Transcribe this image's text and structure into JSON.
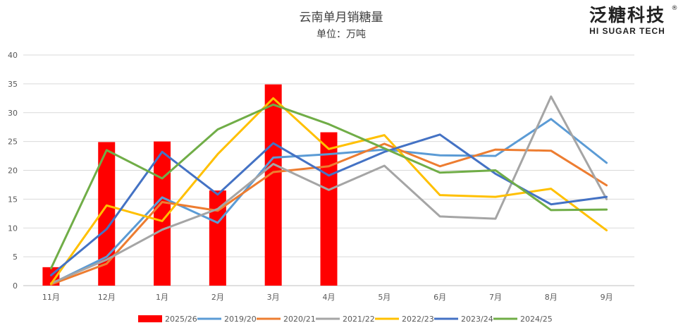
{
  "logo": {
    "name_cn": "泛糖科技",
    "name_en": "HI SUGAR TECH",
    "registered": "®"
  },
  "chart_data": {
    "type": "bar+line",
    "title": "云南单月销糖量",
    "subtitle": "单位：万吨",
    "xlabel": "",
    "ylabel": "",
    "categories": [
      "11月",
      "12月",
      "1月",
      "2月",
      "3月",
      "4月",
      "5月",
      "6月",
      "7月",
      "8月",
      "9月"
    ],
    "ylim": [
      0,
      40
    ],
    "yticks": [
      0,
      5,
      10,
      15,
      20,
      25,
      30,
      35,
      40
    ],
    "grid": true,
    "legend_position": "bottom",
    "bar_series": {
      "name": "2025/26",
      "color": "#ff0000",
      "values": [
        3.2,
        24.9,
        25.0,
        16.5,
        34.9,
        26.6,
        null,
        null,
        null,
        null,
        null
      ]
    },
    "series": [
      {
        "name": "2019/20",
        "color": "#5b9bd5",
        "values": [
          0.3,
          5.0,
          15.3,
          10.9,
          22.2,
          22.8,
          23.6,
          22.6,
          22.5,
          28.9,
          21.3
        ]
      },
      {
        "name": "2020/21",
        "color": "#ed7d31",
        "values": [
          0.2,
          3.8,
          14.5,
          13.0,
          19.7,
          20.7,
          24.6,
          20.7,
          23.6,
          23.4,
          17.4
        ]
      },
      {
        "name": "2021/22",
        "color": "#a5a5a5",
        "values": [
          0.4,
          4.5,
          9.7,
          13.3,
          21.1,
          16.6,
          20.8,
          12.0,
          11.6,
          32.8,
          15.0
        ]
      },
      {
        "name": "2022/23",
        "color": "#ffc000",
        "values": [
          0.3,
          13.9,
          11.2,
          22.8,
          32.5,
          23.7,
          26.1,
          15.7,
          15.4,
          16.8,
          9.6
        ]
      },
      {
        "name": "2023/24",
        "color": "#4472c4",
        "values": [
          1.8,
          9.8,
          23.2,
          15.8,
          24.7,
          19.1,
          23.2,
          26.2,
          19.4,
          14.1,
          15.4
        ]
      },
      {
        "name": "2024/25",
        "color": "#70ad47",
        "values": [
          3.0,
          23.5,
          18.6,
          27.1,
          31.4,
          28.0,
          23.8,
          19.6,
          20.0,
          13.1,
          13.2
        ]
      }
    ]
  }
}
